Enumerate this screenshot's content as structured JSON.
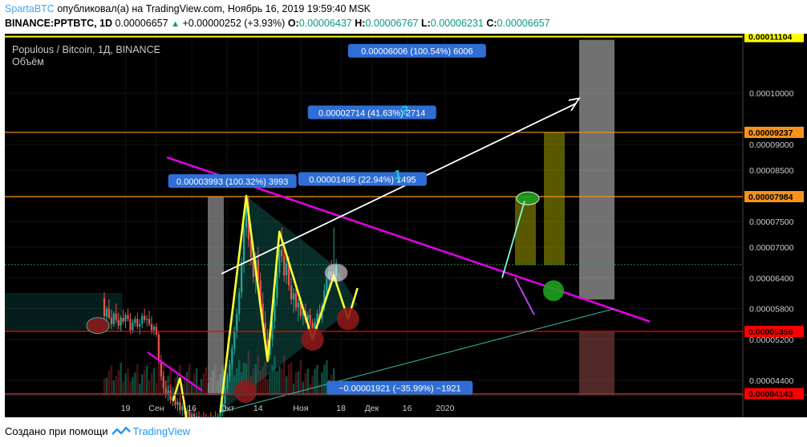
{
  "header": {
    "user": "SpartaBTC",
    "published": "опубликовал(а) на TradingView.com, Ноябрь 16, 2019 19:59:40 MSK",
    "symbol": "BINANCE:PPTBTC, 1D",
    "last": "0.00006657",
    "change": "+0.00000252 (+3.93%)",
    "o_label": "O:",
    "o": "0.00006437",
    "h_label": "H:",
    "h": "0.00006767",
    "l_label": "L:",
    "l": "0.00006231",
    "c_label": "C:",
    "c": "0.00006657"
  },
  "chart_data": {
    "type": "candlestick",
    "title": "Populous / Bitcoin, 1Д, BINANCE",
    "volume_label": "Объём",
    "x_tick_labels": [
      "19",
      "Сен",
      "16",
      "Окт",
      "14",
      "Ноя",
      "18",
      "Дек",
      "16",
      "2020"
    ],
    "y_tick_labels": [
      "0.00010000",
      "0.00009000",
      "0.00008500",
      "0.00007500",
      "0.00007000",
      "0.00006400",
      "0.00005800",
      "0.00005200",
      "0.00004400"
    ],
    "ylim": [
      4.12e-05,
      0.0001116
    ],
    "y_ticks": [
      0.0001,
      9e-05,
      8.5e-05,
      7.5e-05,
      7e-05,
      6.4e-05,
      5.8e-05,
      5.2e-05,
      4.4e-05
    ],
    "price_lines": [
      {
        "value": 0.00011104,
        "label": "0.00011104",
        "color": "#ffff00"
      },
      {
        "value": 9.237e-05,
        "label": "0.00009237",
        "color": "#f7931a"
      },
      {
        "value": 7.984e-05,
        "label": "0.00007984",
        "color": "#f7931a"
      },
      {
        "value": 5.356e-05,
        "label": "0.00005356",
        "color": "#ff0000"
      },
      {
        "value": 4.143e-05,
        "label": "0.00004143",
        "color": "#ff0000"
      }
    ],
    "measure_labels": [
      {
        "text": "0.00006006 (100.54%) 6006"
      },
      {
        "text": "0.00002714 (41.63%) 2714"
      },
      {
        "text": "0.00001495 (22.94%) 1495"
      },
      {
        "text": "0.00003993 (100.32%) 3993"
      },
      {
        "text": "−0.00001921 (−35.99%) −1921"
      }
    ],
    "wave_labels": [
      {
        "text": "1"
      },
      {
        "text": "2"
      }
    ],
    "series": [
      {
        "date": "2019-08-10",
        "open": 6e-05,
        "high": 6.12e-05,
        "low": 5.6e-05,
        "close": 5.65e-05
      },
      {
        "date": "2019-08-11",
        "open": 5.65e-05,
        "high": 5.85e-05,
        "low": 5.52e-05,
        "close": 5.8e-05
      },
      {
        "date": "2019-08-12",
        "open": 5.8e-05,
        "high": 5.98e-05,
        "low": 5.6e-05,
        "close": 5.62e-05
      },
      {
        "date": "2019-08-13",
        "open": 5.62e-05,
        "high": 5.78e-05,
        "low": 5.4e-05,
        "close": 5.5e-05
      },
      {
        "date": "2019-08-14",
        "open": 5.5e-05,
        "high": 5.75e-05,
        "low": 5.45e-05,
        "close": 5.7e-05
      },
      {
        "date": "2019-08-15",
        "open": 5.7e-05,
        "high": 5.9e-05,
        "low": 5.52e-05,
        "close": 5.58e-05
      },
      {
        "date": "2019-08-16",
        "open": 5.58e-05,
        "high": 5.72e-05,
        "low": 5.4e-05,
        "close": 5.47e-05
      },
      {
        "date": "2019-08-17",
        "open": 5.47e-05,
        "high": 5.67e-05,
        "low": 5.35e-05,
        "close": 5.62e-05
      },
      {
        "date": "2019-08-18",
        "open": 5.62e-05,
        "high": 5.78e-05,
        "low": 5.5e-05,
        "close": 5.55e-05
      },
      {
        "date": "2019-08-19",
        "open": 5.55e-05,
        "high": 5.72e-05,
        "low": 5.42e-05,
        "close": 5.68e-05
      },
      {
        "date": "2019-08-20",
        "open": 5.68e-05,
        "high": 5.8e-05,
        "low": 5.55e-05,
        "close": 5.6e-05
      },
      {
        "date": "2019-08-21",
        "open": 5.6e-05,
        "high": 5.72e-05,
        "low": 5.3e-05,
        "close": 5.38e-05
      },
      {
        "date": "2019-08-22",
        "open": 5.38e-05,
        "high": 5.6e-05,
        "low": 5.32e-05,
        "close": 5.52e-05
      },
      {
        "date": "2019-08-23",
        "open": 5.52e-05,
        "high": 5.66e-05,
        "low": 5.45e-05,
        "close": 5.6e-05
      },
      {
        "date": "2019-08-24",
        "open": 5.6e-05,
        "high": 5.72e-05,
        "low": 5.4e-05,
        "close": 5.45e-05
      },
      {
        "date": "2019-08-25",
        "open": 5.45e-05,
        "high": 5.6e-05,
        "low": 5.3e-05,
        "close": 5.5e-05
      },
      {
        "date": "2019-08-26",
        "open": 5.5e-05,
        "high": 5.72e-05,
        "low": 5.42e-05,
        "close": 5.66e-05
      },
      {
        "date": "2019-08-27",
        "open": 5.66e-05,
        "high": 5.8e-05,
        "low": 5.52e-05,
        "close": 5.58e-05
      },
      {
        "date": "2019-08-28",
        "open": 5.58e-05,
        "high": 5.68e-05,
        "low": 5.45e-05,
        "close": 5.6e-05
      },
      {
        "date": "2019-08-29",
        "open": 5.6e-05,
        "high": 5.76e-05,
        "low": 5.45e-05,
        "close": 5.5e-05
      },
      {
        "date": "2019-08-30",
        "open": 5.5e-05,
        "high": 5.65e-05,
        "low": 5.3e-05,
        "close": 5.38e-05
      },
      {
        "date": "2019-08-31",
        "open": 5.38e-05,
        "high": 5.5e-05,
        "low": 5.28e-05,
        "close": 5.45e-05
      },
      {
        "date": "2019-09-01",
        "open": 5.45e-05,
        "high": 5.52e-05,
        "low": 5.25e-05,
        "close": 5.3e-05
      },
      {
        "date": "2019-09-02",
        "open": 5.3e-05,
        "high": 5.36e-05,
        "low": 4.7e-05,
        "close": 4.78e-05
      },
      {
        "date": "2019-09-03",
        "open": 4.78e-05,
        "high": 4.9e-05,
        "low": 4.4e-05,
        "close": 4.48e-05
      },
      {
        "date": "2019-09-04",
        "open": 4.48e-05,
        "high": 4.58e-05,
        "low": 4.15e-05,
        "close": 4.25e-05
      },
      {
        "date": "2019-09-05",
        "open": 4.25e-05,
        "high": 4.4e-05,
        "low": 4.05e-05,
        "close": 4.12e-05
      },
      {
        "date": "2019-09-06",
        "open": 4.12e-05,
        "high": 4.3e-05,
        "low": 4e-05,
        "close": 4.2e-05
      },
      {
        "date": "2019-09-07",
        "open": 4.2e-05,
        "high": 4.32e-05,
        "low": 3.95e-05,
        "close": 4.02e-05
      },
      {
        "date": "2019-09-08",
        "open": 4.02e-05,
        "high": 4.15e-05,
        "low": 3.9e-05,
        "close": 4.08e-05
      },
      {
        "date": "2019-09-09",
        "open": 4.08e-05,
        "high": 4.18e-05,
        "low": 3.85e-05,
        "close": 3.92e-05
      },
      {
        "date": "2019-09-10",
        "open": 3.92e-05,
        "high": 4.05e-05,
        "low": 3.8e-05,
        "close": 3.98e-05
      },
      {
        "date": "2019-09-11",
        "open": 3.98e-05,
        "high": 4.1e-05,
        "low": 3.75e-05,
        "close": 3.82e-05
      },
      {
        "date": "2019-09-12",
        "open": 3.82e-05,
        "high": 3.95e-05,
        "low": 3.7e-05,
        "close": 3.9e-05
      },
      {
        "date": "2019-09-13",
        "open": 3.9e-05,
        "high": 4.02e-05,
        "low": 3.68e-05,
        "close": 3.75e-05
      },
      {
        "date": "2019-09-14",
        "open": 3.75e-05,
        "high": 3.88e-05,
        "low": 3.65e-05,
        "close": 3.8e-05
      },
      {
        "date": "2019-09-15",
        "open": 3.8e-05,
        "high": 3.92e-05,
        "low": 3.6e-05,
        "close": 3.68e-05
      },
      {
        "date": "2019-09-16",
        "open": 3.68e-05,
        "high": 3.8e-05,
        "low": 3.58e-05,
        "close": 3.75e-05
      },
      {
        "date": "2019-09-17",
        "open": 3.75e-05,
        "high": 3.85e-05,
        "low": 3.55e-05,
        "close": 3.62e-05
      },
      {
        "date": "2019-09-18",
        "open": 3.62e-05,
        "high": 3.78e-05,
        "low": 3.52e-05,
        "close": 3.7e-05
      },
      {
        "date": "2019-09-19",
        "open": 3.7e-05,
        "high": 3.8e-05,
        "low": 3.55e-05,
        "close": 3.6e-05
      },
      {
        "date": "2019-09-20",
        "open": 3.6e-05,
        "high": 3.72e-05,
        "low": 3.5e-05,
        "close": 3.68e-05
      },
      {
        "date": "2019-09-21",
        "open": 3.68e-05,
        "high": 3.78e-05,
        "low": 3.55e-05,
        "close": 3.62e-05
      },
      {
        "date": "2019-09-22",
        "open": 3.62e-05,
        "high": 3.75e-05,
        "low": 3.52e-05,
        "close": 3.58e-05
      },
      {
        "date": "2019-09-23",
        "open": 3.58e-05,
        "high": 3.7e-05,
        "low": 3.5e-05,
        "close": 3.66e-05
      },
      {
        "date": "2019-09-24",
        "open": 3.66e-05,
        "high": 3.78e-05,
        "low": 3.55e-05,
        "close": 3.6e-05
      },
      {
        "date": "2019-09-25",
        "open": 3.6e-05,
        "high": 3.72e-05,
        "low": 3.52e-05,
        "close": 3.68e-05
      },
      {
        "date": "2019-09-26",
        "open": 3.68e-05,
        "high": 3.8e-05,
        "low": 3.58e-05,
        "close": 3.62e-05
      },
      {
        "date": "2019-09-27",
        "open": 3.62e-05,
        "high": 3.76e-05,
        "low": 3.55e-05,
        "close": 3.7e-05
      },
      {
        "date": "2019-09-28",
        "open": 3.7e-05,
        "high": 3.85e-05,
        "low": 3.6e-05,
        "close": 3.78e-05
      },
      {
        "date": "2019-09-29",
        "open": 3.78e-05,
        "high": 4e-05,
        "low": 3.7e-05,
        "close": 3.95e-05
      },
      {
        "date": "2019-09-30",
        "open": 3.95e-05,
        "high": 4.3e-05,
        "low": 3.85e-05,
        "close": 4.25e-05
      },
      {
        "date": "2019-10-01",
        "open": 4.25e-05,
        "high": 4.55e-05,
        "low": 4.15e-05,
        "close": 4.48e-05
      },
      {
        "date": "2019-10-02",
        "open": 4.48e-05,
        "high": 4.8e-05,
        "low": 4.38e-05,
        "close": 4.72e-05
      },
      {
        "date": "2019-10-03",
        "open": 4.72e-05,
        "high": 5.1e-05,
        "low": 4.62e-05,
        "close": 5.02e-05
      },
      {
        "date": "2019-10-04",
        "open": 5.02e-05,
        "high": 5.45e-05,
        "low": 4.9e-05,
        "close": 5.35e-05
      },
      {
        "date": "2019-10-05",
        "open": 5.35e-05,
        "high": 5.8e-05,
        "low": 5.22e-05,
        "close": 5.7e-05
      },
      {
        "date": "2019-10-06",
        "open": 5.7e-05,
        "high": 6.2e-05,
        "low": 5.55e-05,
        "close": 6.12e-05
      },
      {
        "date": "2019-10-07",
        "open": 6.12e-05,
        "high": 6.8e-05,
        "low": 6e-05,
        "close": 6.7e-05
      },
      {
        "date": "2019-10-08",
        "open": 6.7e-05,
        "high": 7.5e-05,
        "low": 6.5e-05,
        "close": 7.38e-05
      },
      {
        "date": "2019-10-09",
        "open": 7.38e-05,
        "high": 8e-05,
        "low": 7.2e-05,
        "close": 7.8e-05
      },
      {
        "date": "2019-10-10",
        "open": 7.8e-05,
        "high": 7.98e-05,
        "low": 7e-05,
        "close": 7.15e-05
      },
      {
        "date": "2019-10-11",
        "open": 7.15e-05,
        "high": 7.45e-05,
        "low": 6.65e-05,
        "close": 6.8e-05
      },
      {
        "date": "2019-10-12",
        "open": 6.8e-05,
        "high": 7.1e-05,
        "low": 6.3e-05,
        "close": 6.42e-05
      },
      {
        "date": "2019-10-13",
        "open": 6.42e-05,
        "high": 6.9e-05,
        "low": 6.1e-05,
        "close": 6.75e-05
      },
      {
        "date": "2019-10-14",
        "open": 6.75e-05,
        "high": 7e-05,
        "low": 6.25e-05,
        "close": 6.35e-05
      },
      {
        "date": "2019-10-15",
        "open": 6.35e-05,
        "high": 6.5e-05,
        "low": 5.75e-05,
        "close": 5.9e-05
      },
      {
        "date": "2019-10-16",
        "open": 5.9e-05,
        "high": 6.12e-05,
        "low": 5.4e-05,
        "close": 5.52e-05
      },
      {
        "date": "2019-10-17",
        "open": 5.52e-05,
        "high": 5.75e-05,
        "low": 5.05e-05,
        "close": 5.2e-05
      },
      {
        "date": "2019-10-18",
        "open": 5.2e-05,
        "high": 5.4e-05,
        "low": 4.75e-05,
        "close": 4.9e-05
      },
      {
        "date": "2019-10-19",
        "open": 4.9e-05,
        "high": 5.3e-05,
        "low": 4.8e-05,
        "close": 5.2e-05
      },
      {
        "date": "2019-10-20",
        "open": 5.2e-05,
        "high": 5.65e-05,
        "low": 5.05e-05,
        "close": 5.55e-05
      },
      {
        "date": "2019-10-21",
        "open": 5.55e-05,
        "high": 6.1e-05,
        "low": 5.4e-05,
        "close": 6e-05
      },
      {
        "date": "2019-10-22",
        "open": 6e-05,
        "high": 6.6e-05,
        "low": 5.85e-05,
        "close": 6.5e-05
      },
      {
        "date": "2019-10-23",
        "open": 6.5e-05,
        "high": 7.05e-05,
        "low": 6.4e-05,
        "close": 6.95e-05
      },
      {
        "date": "2019-10-24",
        "open": 6.95e-05,
        "high": 7.38e-05,
        "low": 6.7e-05,
        "close": 6.82e-05
      },
      {
        "date": "2019-10-25",
        "open": 6.82e-05,
        "high": 6.98e-05,
        "low": 6.32e-05,
        "close": 6.45e-05
      },
      {
        "date": "2019-10-26",
        "open": 6.45e-05,
        "high": 6.8e-05,
        "low": 6.28e-05,
        "close": 6.68e-05
      },
      {
        "date": "2019-10-27",
        "open": 6.68e-05,
        "high": 6.82e-05,
        "low": 6.15e-05,
        "close": 6.25e-05
      },
      {
        "date": "2019-10-28",
        "open": 6.25e-05,
        "high": 6.4e-05,
        "low": 5.88e-05,
        "close": 5.98e-05
      },
      {
        "date": "2019-10-29",
        "open": 5.98e-05,
        "high": 6.2e-05,
        "low": 5.72e-05,
        "close": 6.1e-05
      },
      {
        "date": "2019-10-30",
        "open": 6.1e-05,
        "high": 6.22e-05,
        "low": 5.75e-05,
        "close": 5.82e-05
      },
      {
        "date": "2019-10-31",
        "open": 5.82e-05,
        "high": 6e-05,
        "low": 5.55e-05,
        "close": 5.92e-05
      },
      {
        "date": "2019-11-01",
        "open": 5.92e-05,
        "high": 6.02e-05,
        "low": 5.6e-05,
        "close": 5.66e-05
      },
      {
        "date": "2019-11-02",
        "open": 5.66e-05,
        "high": 5.82e-05,
        "low": 5.48e-05,
        "close": 5.75e-05
      },
      {
        "date": "2019-11-03",
        "open": 5.75e-05,
        "high": 5.9e-05,
        "low": 5.52e-05,
        "close": 5.58e-05
      },
      {
        "date": "2019-11-04",
        "open": 5.58e-05,
        "high": 5.75e-05,
        "low": 5.4e-05,
        "close": 5.68e-05
      },
      {
        "date": "2019-11-05",
        "open": 5.68e-05,
        "high": 5.8e-05,
        "low": 5.45e-05,
        "close": 5.52e-05
      },
      {
        "date": "2019-11-06",
        "open": 5.52e-05,
        "high": 5.6e-05,
        "low": 5.2e-05,
        "close": 5.3e-05
      },
      {
        "date": "2019-11-07",
        "open": 5.3e-05,
        "high": 5.62e-05,
        "low": 5.22e-05,
        "close": 5.55e-05
      },
      {
        "date": "2019-11-08",
        "open": 5.55e-05,
        "high": 5.78e-05,
        "low": 5.4e-05,
        "close": 5.7e-05
      },
      {
        "date": "2019-11-09",
        "open": 5.7e-05,
        "high": 5.88e-05,
        "low": 5.52e-05,
        "close": 5.6e-05
      },
      {
        "date": "2019-11-10",
        "open": 5.6e-05,
        "high": 5.92e-05,
        "low": 5.52e-05,
        "close": 5.85e-05
      },
      {
        "date": "2019-11-11",
        "open": 5.85e-05,
        "high": 6.28e-05,
        "low": 5.75e-05,
        "close": 6.15e-05
      },
      {
        "date": "2019-11-12",
        "open": 6.15e-05,
        "high": 6.48e-05,
        "low": 6e-05,
        "close": 6.38e-05
      },
      {
        "date": "2019-11-13",
        "open": 6.38e-05,
        "high": 6.65e-05,
        "low": 6.2e-05,
        "close": 6.52e-05
      },
      {
        "date": "2019-11-14",
        "open": 6.52e-05,
        "high": 6.75e-05,
        "low": 6.3e-05,
        "close": 6.43e-05
      },
      {
        "date": "2019-11-15",
        "open": 6.43e-05,
        "high": 7.38e-05,
        "low": 6.32e-05,
        "close": 6.52e-05
      },
      {
        "date": "2019-11-16",
        "open": 6.44e-05,
        "high": 6.77e-05,
        "low": 6.23e-05,
        "close": 6.66e-05
      }
    ]
  },
  "footer": {
    "created_with": "Создано при помощи",
    "brand": "TradingView"
  }
}
